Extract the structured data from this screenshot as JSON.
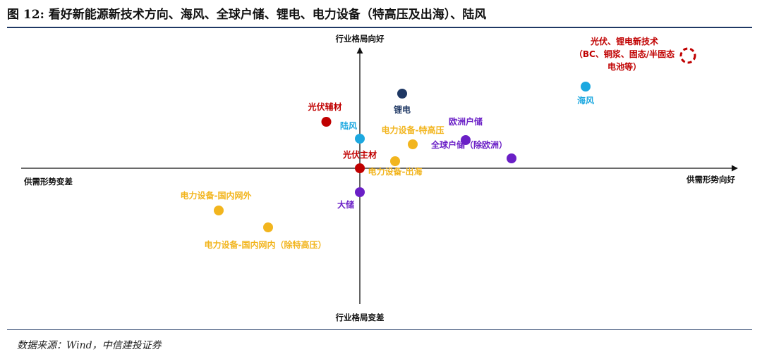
{
  "header": {
    "title": "图 12: 看好新能源新技术方向、海风、全球户储、锂电、电力设备（特高压及出海）、陆风"
  },
  "footer": {
    "source": "数据来源：Wind，中信建投证券"
  },
  "colors": {
    "red": "#c00000",
    "navy": "#1f3864",
    "lightblue": "#1ca8e0",
    "gold": "#f2b51e",
    "purple": "#6a1fc6",
    "rule": "#1f3864"
  },
  "chart_data": {
    "type": "scatter",
    "title": "看好新能源新技术方向、海风、全球户储、锂电、电力设备（特高压及出海）、陆风",
    "xlabel_left": "供需形势变差",
    "xlabel_right": "供需形势向好",
    "ylabel_top": "行业格局向好",
    "ylabel_bottom": "行业格局变差",
    "xlim": [
      -10,
      10
    ],
    "ylim": [
      -10,
      10
    ],
    "grid": false,
    "points": [
      {
        "name": "光伏、锂电新技术",
        "sublabel": "（BC、铜浆、固态/半固态",
        "sublabel2": "电池等）",
        "x": 9.3,
        "y": 8.0,
        "color": "#c00000",
        "dashed": true
      },
      {
        "name": "海风",
        "x": 6.4,
        "y": 5.8,
        "color": "#1ca8e0"
      },
      {
        "name": "锂电",
        "x": 1.2,
        "y": 5.3,
        "color": "#1f3864"
      },
      {
        "name": "光伏辅材",
        "x": -0.95,
        "y": 3.3,
        "color": "#c00000"
      },
      {
        "name": "陆风",
        "x": 0.0,
        "y": 2.1,
        "color": "#1ca8e0"
      },
      {
        "name": "电力设备-特高压",
        "x": 1.5,
        "y": 1.7,
        "color": "#f2b51e"
      },
      {
        "name": "欧洲户储",
        "x": 3.0,
        "y": 2.0,
        "color": "#6a1fc6"
      },
      {
        "name": "全球户储（除欧洲）",
        "x": 4.3,
        "y": 0.7,
        "color": "#6a1fc6"
      },
      {
        "name": "光伏主材",
        "x": 0.0,
        "y": 0.0,
        "color": "#c00000"
      },
      {
        "name": "电力设备-出海",
        "x": 1.0,
        "y": 0.5,
        "color": "#f2b51e"
      },
      {
        "name": "大储",
        "x": 0.0,
        "y": -1.7,
        "color": "#6a1fc6"
      },
      {
        "name": "电力设备-国内网外",
        "x": -4.0,
        "y": -3.0,
        "color": "#f2b51e"
      },
      {
        "name": "电力设备-国内网内（除特高压）",
        "x": -2.6,
        "y": -4.2,
        "color": "#f2b51e"
      }
    ]
  }
}
